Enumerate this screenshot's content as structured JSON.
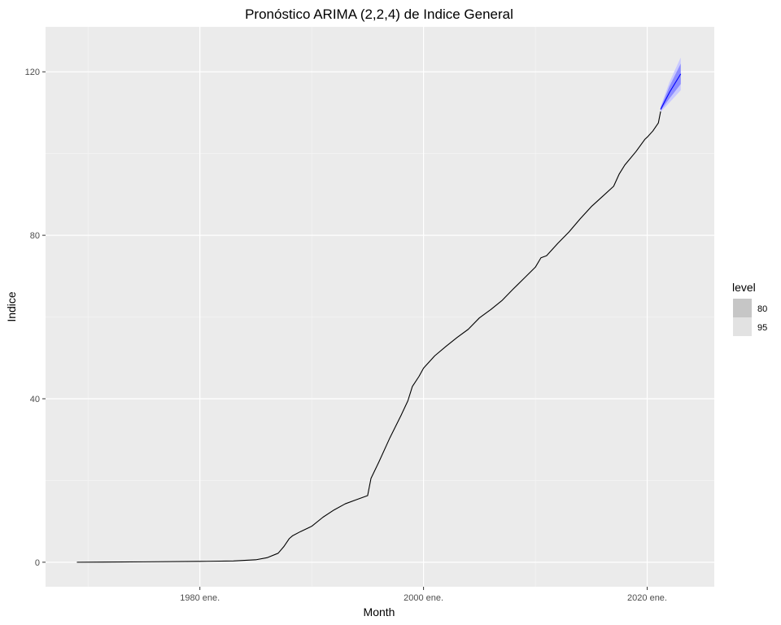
{
  "chart_data": {
    "type": "line",
    "title": "Pronóstico ARIMA (2,2,4) de Indice General",
    "xlabel": "Month",
    "ylabel": "Indice",
    "xlim": [
      1966.2,
      2026.0
    ],
    "ylim": [
      -6.0,
      131.0
    ],
    "x_ticks": [
      {
        "value": 1980,
        "label": "1980 ene."
      },
      {
        "value": 2000,
        "label": "2000 ene."
      },
      {
        "value": 2020,
        "label": "2020 ene."
      }
    ],
    "x_minor_ticks": [
      1970,
      1990,
      2010
    ],
    "y_ticks": [
      {
        "value": 0,
        "label": "0"
      },
      {
        "value": 40,
        "label": "40"
      },
      {
        "value": 80,
        "label": "80"
      },
      {
        "value": 120,
        "label": "120"
      }
    ],
    "y_minor_ticks": [
      20,
      60,
      100
    ],
    "grid": true,
    "series": [
      {
        "kind": "observed",
        "color": "#000000",
        "x": [
          1969.0,
          1975.0,
          1980.0,
          1983.0,
          1985.0,
          1986.0,
          1987.0,
          1987.5,
          1988.0,
          1988.3,
          1989.0,
          1990.0,
          1991.0,
          1992.0,
          1993.0,
          1994.0,
          1995.0,
          1995.3,
          1996.0,
          1997.0,
          1998.0,
          1998.6,
          1999.0,
          1999.6,
          2000.0,
          2001.0,
          2002.0,
          2003.0,
          2004.0,
          2005.0,
          2006.0,
          2007.0,
          2008.0,
          2009.0,
          2010.0,
          2010.5,
          2011.0,
          2012.0,
          2013.0,
          2014.0,
          2015.0,
          2016.0,
          2017.0,
          2017.5,
          2018.0,
          2019.0,
          2019.8,
          2020.0,
          2020.5,
          2021.0,
          2021.2
        ],
        "y": [
          0.0,
          0.1,
          0.2,
          0.3,
          0.6,
          1.1,
          2.2,
          3.8,
          5.8,
          6.5,
          7.5,
          8.8,
          11.0,
          12.8,
          14.3,
          15.3,
          16.3,
          20.5,
          24.5,
          30.5,
          36.0,
          39.5,
          43.0,
          45.5,
          47.5,
          50.5,
          52.8,
          55.0,
          57.0,
          59.8,
          61.8,
          64.0,
          66.8,
          69.5,
          72.2,
          74.5,
          75.0,
          78.0,
          80.8,
          84.0,
          87.0,
          89.5,
          92.0,
          95.0,
          97.2,
          100.5,
          103.5,
          104.0,
          105.5,
          107.5,
          110.3
        ]
      },
      {
        "kind": "forecast",
        "color": "#0000ff",
        "x": [
          2021.2,
          2022.0,
          2023.0
        ],
        "y": [
          110.8,
          115.0,
          119.5
        ]
      }
    ],
    "intervals": [
      {
        "level": "80",
        "color": "#8c8cff",
        "x": [
          2021.2,
          2022.0,
          2023.0
        ],
        "lower": [
          110.5,
          113.5,
          117.0
        ],
        "upper": [
          111.2,
          116.5,
          122.0
        ]
      },
      {
        "level": "95",
        "color": "#c9c9ff",
        "x": [
          2021.2,
          2022.0,
          2023.0
        ],
        "lower": [
          110.2,
          112.5,
          115.5
        ],
        "upper": [
          111.5,
          117.5,
          123.5
        ]
      }
    ],
    "legend": {
      "title": "level",
      "position": "right",
      "items": [
        {
          "label": "80",
          "color": "#c6c6c6"
        },
        {
          "label": "95",
          "color": "#e2e2e2"
        }
      ]
    }
  }
}
